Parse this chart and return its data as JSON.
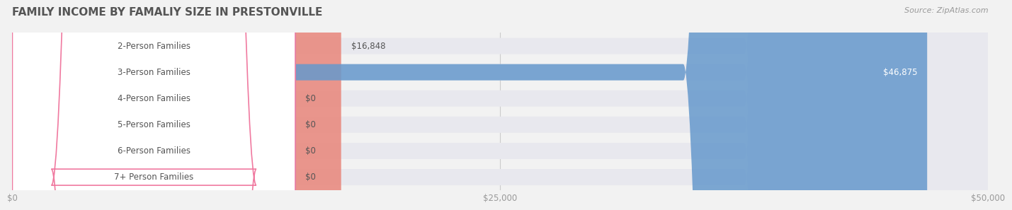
{
  "title": "FAMILY INCOME BY FAMALIY SIZE IN PRESTONVILLE",
  "source": "Source: ZipAtlas.com",
  "categories": [
    "2-Person Families",
    "3-Person Families",
    "4-Person Families",
    "5-Person Families",
    "6-Person Families",
    "7+ Person Families"
  ],
  "values": [
    16848,
    46875,
    0,
    0,
    0,
    0
  ],
  "max_value": 50000,
  "bar_colors": [
    "#E8857A",
    "#6699CC",
    "#B28CB4",
    "#5BBFAD",
    "#9999CC",
    "#F07AA0"
  ],
  "label_colors": [
    "#E8857A",
    "#6699CC",
    "#B28CB4",
    "#5BBFAD",
    "#9999CC",
    "#F07AA0"
  ],
  "value_labels": [
    "$16,848",
    "$46,875",
    "$0",
    "$0",
    "$0",
    "$0"
  ],
  "xtick_labels": [
    "$0",
    "$25,000",
    "$50,000"
  ],
  "xtick_values": [
    0,
    25000,
    50000
  ],
  "bg_color": "#F2F2F2",
  "bar_bg_color": "#E8E8EE",
  "label_box_color": "#FFFFFF",
  "title_color": "#555555",
  "source_color": "#999999",
  "tick_color": "#999999",
  "grid_color": "#CCCCCC"
}
